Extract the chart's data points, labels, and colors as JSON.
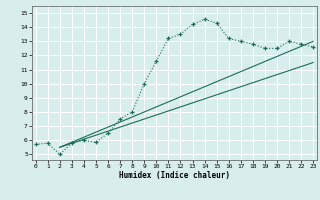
{
  "xlabel": "Humidex (Indice chaleur)",
  "bg_color": "#d8eeed",
  "grid_color": "#ffffff",
  "line_color": "#1a6b5a",
  "x_ticks": [
    0,
    1,
    2,
    3,
    4,
    5,
    6,
    7,
    8,
    9,
    10,
    11,
    12,
    13,
    14,
    15,
    16,
    17,
    18,
    19,
    20,
    21,
    22,
    23
  ],
  "y_ticks": [
    5,
    6,
    7,
    8,
    9,
    10,
    11,
    12,
    13,
    14,
    15
  ],
  "xlim": [
    -0.3,
    23.3
  ],
  "ylim": [
    4.6,
    15.5
  ],
  "curve1_x": [
    0,
    1,
    2,
    3,
    4,
    5,
    6,
    7,
    8,
    9,
    10,
    11,
    12,
    13,
    14,
    15,
    16,
    17,
    18,
    19,
    20,
    21,
    22,
    23
  ],
  "curve1_y": [
    5.7,
    5.8,
    5.0,
    5.8,
    6.0,
    5.85,
    6.5,
    7.5,
    8.0,
    10.0,
    11.6,
    13.2,
    13.5,
    14.2,
    14.55,
    14.3,
    13.2,
    13.0,
    12.8,
    12.5,
    12.5,
    13.0,
    12.8,
    12.6
  ],
  "curve2_x": [
    2,
    23
  ],
  "curve2_y": [
    5.5,
    11.5
  ],
  "curve3_x": [
    2,
    23
  ],
  "curve3_y": [
    5.5,
    13.0
  ],
  "figwidth": 3.2,
  "figheight": 2.0,
  "dpi": 100
}
